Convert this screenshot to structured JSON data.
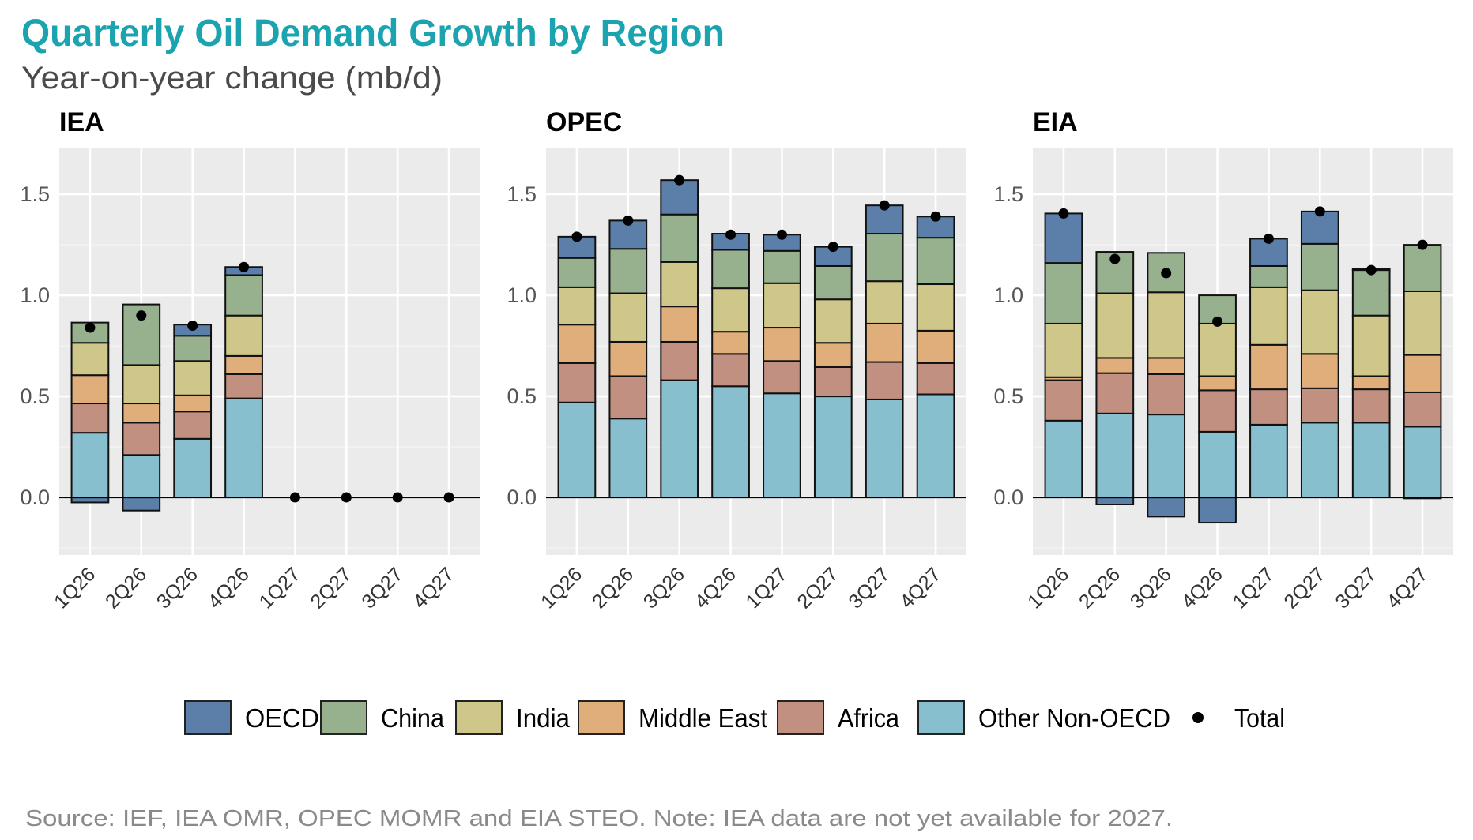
{
  "title": "Quarterly Oil Demand Growth by Region",
  "subtitle": "Year-on-year change (mb/d)",
  "footer": "Source: IEF, IEA OMR, OPEC MOMR and EIA STEO. Note: IEA data are not yet available for 2027.",
  "legend": {
    "items": [
      {
        "label": "OECD",
        "color": "#5b7fa8"
      },
      {
        "label": "China",
        "color": "#97b18f"
      },
      {
        "label": "India",
        "color": "#cfc78a"
      },
      {
        "label": "Middle East",
        "color": "#e0ae7b"
      },
      {
        "label": "Africa",
        "color": "#c29080"
      },
      {
        "label": "Other Non-OECD",
        "color": "#88bfcf"
      }
    ],
    "total_label": "Total",
    "placement": "bottom"
  },
  "chart_data": [
    {
      "type": "bar",
      "stacked": true,
      "title": "IEA",
      "categories": [
        "1Q26",
        "2Q26",
        "3Q26",
        "4Q26",
        "1Q27",
        "2Q27",
        "3Q27",
        "4Q27"
      ],
      "ylim": [
        -0.285,
        1.727
      ],
      "yticks": [
        "0.0",
        "0.5",
        "1.0",
        "1.5"
      ],
      "grid": true,
      "series": [
        {
          "name": "Other Non-OECD",
          "values": [
            0.32,
            0.21,
            0.29,
            0.49,
            0,
            0,
            0,
            0
          ]
        },
        {
          "name": "Africa",
          "values": [
            0.145,
            0.16,
            0.135,
            0.12,
            0,
            0,
            0,
            0
          ]
        },
        {
          "name": "Middle East",
          "values": [
            0.14,
            0.095,
            0.08,
            0.09,
            0,
            0,
            0,
            0
          ]
        },
        {
          "name": "India",
          "values": [
            0.16,
            0.19,
            0.17,
            0.2,
            0,
            0,
            0,
            0
          ]
        },
        {
          "name": "China",
          "values": [
            0.1,
            0.3,
            0.125,
            0.2,
            0,
            0,
            0,
            0
          ]
        },
        {
          "name": "OECD",
          "values": [
            -0.025,
            -0.065,
            0.055,
            0.04,
            0,
            0,
            0,
            0
          ]
        }
      ],
      "total": [
        0.84,
        0.9,
        0.85,
        1.14,
        0,
        0,
        0,
        0
      ]
    },
    {
      "type": "bar",
      "stacked": true,
      "title": "OPEC",
      "categories": [
        "1Q26",
        "2Q26",
        "3Q26",
        "4Q26",
        "1Q27",
        "2Q27",
        "3Q27",
        "4Q27"
      ],
      "ylim": [
        -0.285,
        1.727
      ],
      "yticks": [
        "0.0",
        "0.5",
        "1.0",
        "1.5"
      ],
      "grid": true,
      "series": [
        {
          "name": "Other Non-OECD",
          "values": [
            0.47,
            0.39,
            0.58,
            0.55,
            0.515,
            0.5,
            0.485,
            0.51
          ]
        },
        {
          "name": "Africa",
          "values": [
            0.195,
            0.21,
            0.19,
            0.16,
            0.16,
            0.145,
            0.185,
            0.155
          ]
        },
        {
          "name": "Middle East",
          "values": [
            0.19,
            0.17,
            0.175,
            0.11,
            0.165,
            0.12,
            0.19,
            0.16
          ]
        },
        {
          "name": "India",
          "values": [
            0.185,
            0.24,
            0.22,
            0.215,
            0.22,
            0.215,
            0.21,
            0.23
          ]
        },
        {
          "name": "China",
          "values": [
            0.145,
            0.22,
            0.235,
            0.19,
            0.16,
            0.165,
            0.235,
            0.23
          ]
        },
        {
          "name": "OECD",
          "values": [
            0.105,
            0.14,
            0.17,
            0.08,
            0.08,
            0.095,
            0.14,
            0.105
          ]
        }
      ],
      "total": [
        1.29,
        1.37,
        1.57,
        1.3,
        1.3,
        1.24,
        1.445,
        1.39
      ]
    },
    {
      "type": "bar",
      "stacked": true,
      "title": "EIA",
      "categories": [
        "1Q26",
        "2Q26",
        "3Q26",
        "4Q26",
        "1Q27",
        "2Q27",
        "3Q27",
        "4Q27"
      ],
      "ylim": [
        -0.285,
        1.727
      ],
      "yticks": [
        "0.0",
        "0.5",
        "1.0",
        "1.5"
      ],
      "grid": true,
      "series": [
        {
          "name": "Other Non-OECD",
          "values": [
            0.38,
            0.415,
            0.41,
            0.325,
            0.36,
            0.37,
            0.37,
            0.35
          ]
        },
        {
          "name": "Africa",
          "values": [
            0.2,
            0.2,
            0.2,
            0.205,
            0.175,
            0.17,
            0.165,
            0.17
          ]
        },
        {
          "name": "Middle East",
          "values": [
            0.015,
            0.075,
            0.08,
            0.07,
            0.22,
            0.17,
            0.065,
            0.185
          ]
        },
        {
          "name": "India",
          "values": [
            0.265,
            0.32,
            0.325,
            0.26,
            0.285,
            0.315,
            0.3,
            0.315
          ]
        },
        {
          "name": "China",
          "values": [
            0.3,
            0.205,
            0.195,
            0.14,
            0.105,
            0.23,
            0.225,
            0.23
          ]
        },
        {
          "name": "OECD",
          "values": [
            0.245,
            -0.035,
            -0.095,
            -0.125,
            0.135,
            0.16,
            0.005,
            -0.005
          ]
        }
      ],
      "total": [
        1.405,
        1.18,
        1.11,
        0.87,
        1.28,
        1.415,
        1.125,
        1.25
      ]
    }
  ]
}
